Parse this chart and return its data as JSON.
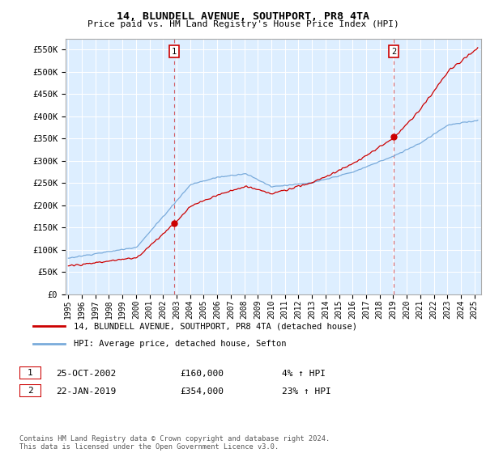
{
  "title": "14, BLUNDELL AVENUE, SOUTHPORT, PR8 4TA",
  "subtitle": "Price paid vs. HM Land Registry's House Price Index (HPI)",
  "ylabel_ticks": [
    "£0",
    "£50K",
    "£100K",
    "£150K",
    "£200K",
    "£250K",
    "£300K",
    "£350K",
    "£400K",
    "£450K",
    "£500K",
    "£550K"
  ],
  "ytick_values": [
    0,
    50000,
    100000,
    150000,
    200000,
    250000,
    300000,
    350000,
    400000,
    450000,
    500000,
    550000
  ],
  "ylim": [
    0,
    575000
  ],
  "xlim_start": 1994.8,
  "xlim_end": 2025.5,
  "xtick_years": [
    1995,
    1996,
    1997,
    1998,
    1999,
    2000,
    2001,
    2002,
    2003,
    2004,
    2005,
    2006,
    2007,
    2008,
    2009,
    2010,
    2011,
    2012,
    2013,
    2014,
    2015,
    2016,
    2017,
    2018,
    2019,
    2020,
    2021,
    2022,
    2023,
    2024,
    2025
  ],
  "point1_x": 2002.82,
  "point1_y": 160000,
  "point2_x": 2019.05,
  "point2_y": 354000,
  "vline1_x": 2002.82,
  "vline2_x": 2019.05,
  "red_line_color": "#cc0000",
  "blue_line_color": "#7aabdb",
  "plot_bg_color": "#ddeeff",
  "grid_color": "#ffffff",
  "background_color": "#ffffff",
  "legend_label_red": "14, BLUNDELL AVENUE, SOUTHPORT, PR8 4TA (detached house)",
  "legend_label_blue": "HPI: Average price, detached house, Sefton",
  "annotation1_label": "1",
  "annotation1_date": "25-OCT-2002",
  "annotation1_price": "£160,000",
  "annotation1_hpi": "4% ↑ HPI",
  "annotation2_label": "2",
  "annotation2_date": "22-JAN-2019",
  "annotation2_price": "£354,000",
  "annotation2_hpi": "23% ↑ HPI",
  "footer": "Contains HM Land Registry data © Crown copyright and database right 2024.\nThis data is licensed under the Open Government Licence v3.0."
}
